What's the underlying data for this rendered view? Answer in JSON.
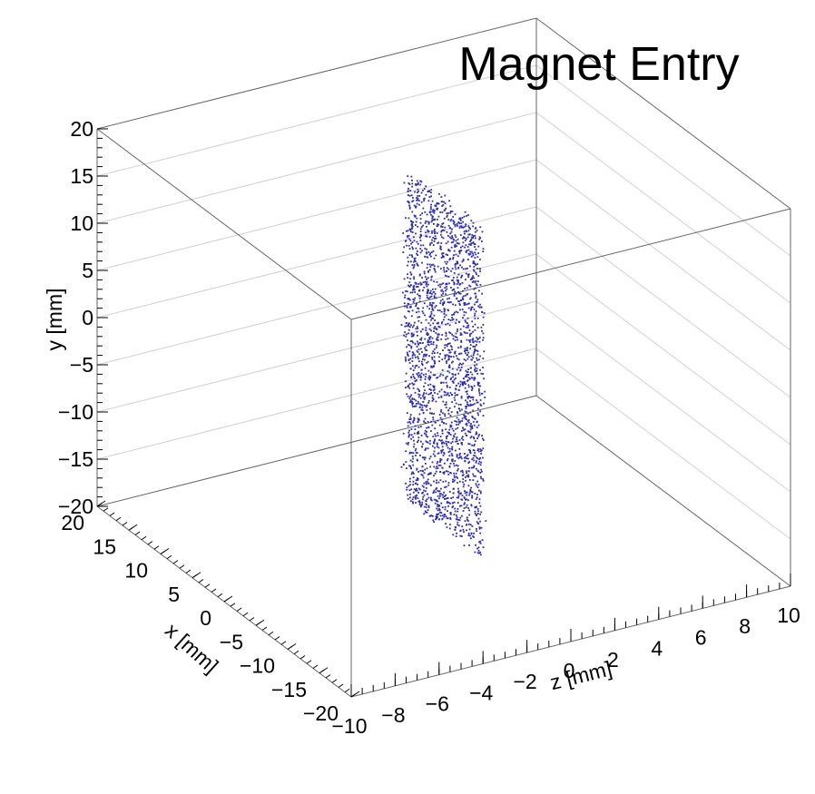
{
  "chart_data": {
    "type": "scatter3d",
    "title": "Magnet Entry",
    "xlabel": "x [mm]",
    "ylabel": "y [mm]",
    "zlabel": "z [mm]",
    "xlim": [
      -20,
      20
    ],
    "ylim": [
      -20,
      20
    ],
    "zlim": [
      -10,
      10
    ],
    "x_ticks": [
      "20",
      "15",
      "10",
      "5",
      "0",
      "−5",
      "−10",
      "−15",
      "−20"
    ],
    "x_tick_values": [
      20,
      15,
      10,
      5,
      0,
      -5,
      -10,
      -15,
      -20
    ],
    "y_ticks": [
      "20",
      "15",
      "10",
      "5",
      "0",
      "−5",
      "−10",
      "−15",
      "−20"
    ],
    "y_tick_values": [
      20,
      15,
      10,
      5,
      0,
      -5,
      -10,
      -15,
      -20
    ],
    "z_ticks": [
      "−10",
      "−8",
      "−6",
      "−4",
      "−2",
      "0",
      "2",
      "4",
      "6",
      "8",
      "10"
    ],
    "z_tick_values": [
      -10,
      -8,
      -6,
      -4,
      -2,
      0,
      2,
      4,
      6,
      8,
      10
    ],
    "grid": true,
    "marker_color": "#2b2bb0",
    "distribution": {
      "shape": "thin slab of points",
      "x_range": [
        -6,
        6
      ],
      "y_range": [
        -18,
        17
      ],
      "z_range": [
        -0.2,
        0.2
      ]
    }
  }
}
